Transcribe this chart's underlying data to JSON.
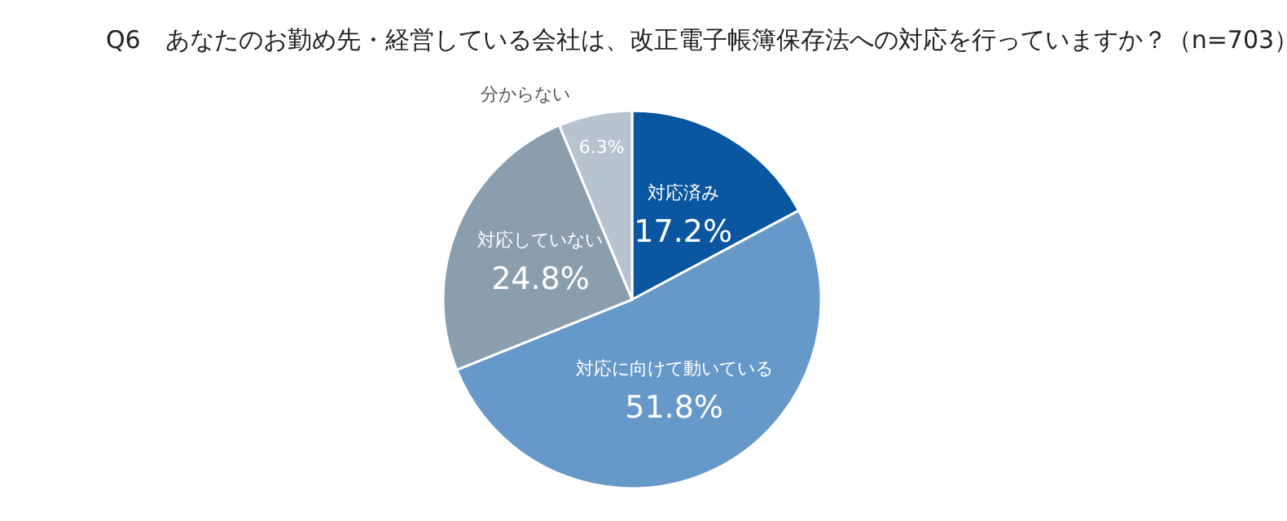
{
  "chart_data": {
    "type": "pie",
    "title": "Q6　あなたのお勤め先・経営している会社は、改正電子帳簿保存法への対応を行っていますか？（n=703）",
    "categories": [
      "対応済み",
      "対応に向けて動いている",
      "対応していない",
      "分からない"
    ],
    "values": [
      17.2,
      51.8,
      24.8,
      6.3
    ],
    "colors": [
      "#0a56a0",
      "#6699c9",
      "#8a9eae",
      "#b7c3cf"
    ],
    "value_labels": [
      "17.2%",
      "51.8%",
      "24.8%",
      "6.3%"
    ],
    "legend": false
  }
}
